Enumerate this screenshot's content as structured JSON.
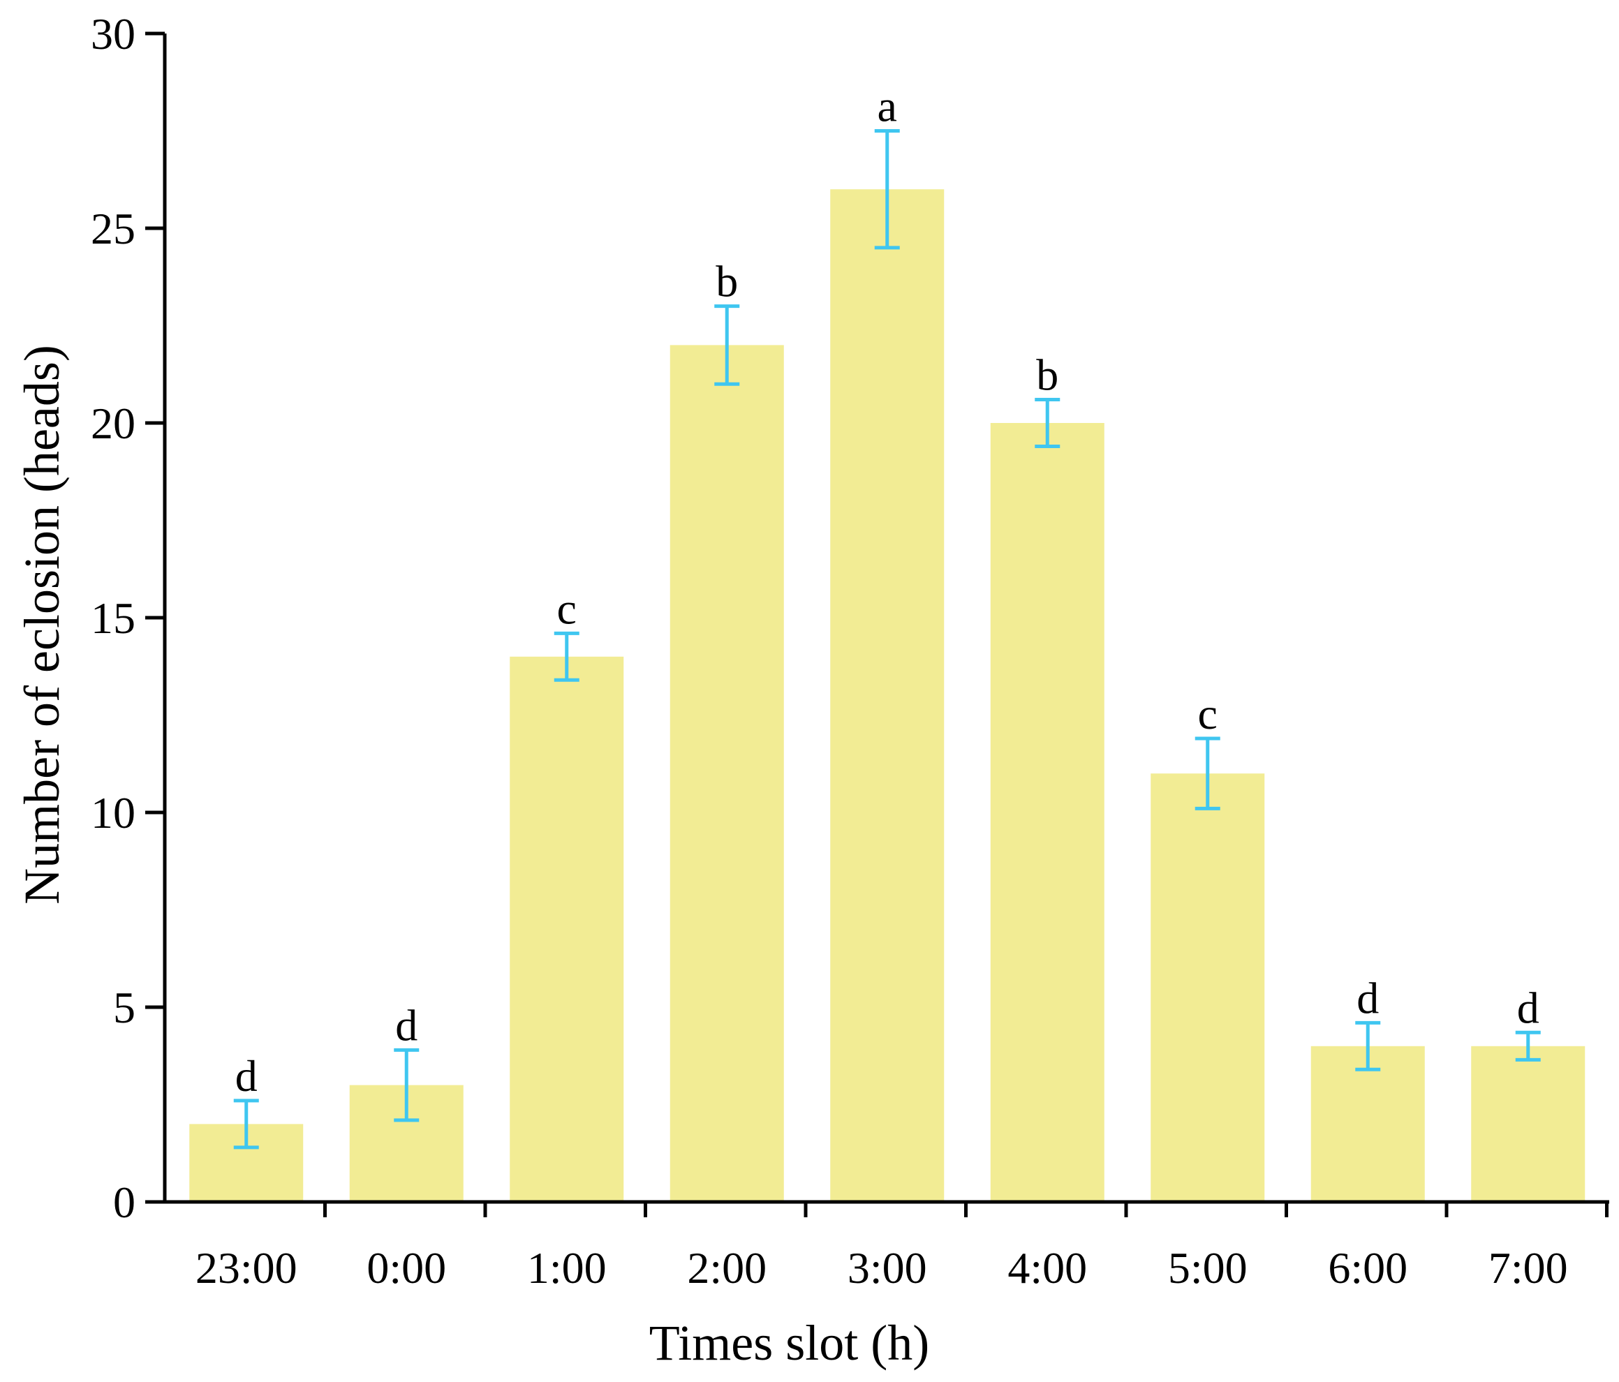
{
  "chart_data": {
    "type": "bar",
    "title": "",
    "xlabel": "Times slot (h)",
    "ylabel": "Number of eclosion (heads)",
    "categories": [
      "23:00",
      "0:00",
      "1:00",
      "2:00",
      "3:00",
      "4:00",
      "5:00",
      "6:00",
      "7:00"
    ],
    "values": [
      2,
      3,
      14,
      22,
      26,
      20,
      11,
      4,
      4
    ],
    "error_upper": [
      2.6,
      3.9,
      14.6,
      23.0,
      27.5,
      20.6,
      11.9,
      4.6,
      4.35
    ],
    "error_lower": [
      1.4,
      2.1,
      13.4,
      21.0,
      24.5,
      19.4,
      10.1,
      3.4,
      3.65
    ],
    "significance_letters": [
      "d",
      "d",
      "c",
      "b",
      "a",
      "b",
      "c",
      "d",
      "d"
    ],
    "ylim": [
      0,
      30
    ],
    "yticks": [
      0,
      5,
      10,
      15,
      20,
      25,
      30
    ],
    "grid": false,
    "colors": {
      "bar": "#F2EC94",
      "error_bar": "#3FC6F0",
      "axis": "#000000"
    }
  }
}
